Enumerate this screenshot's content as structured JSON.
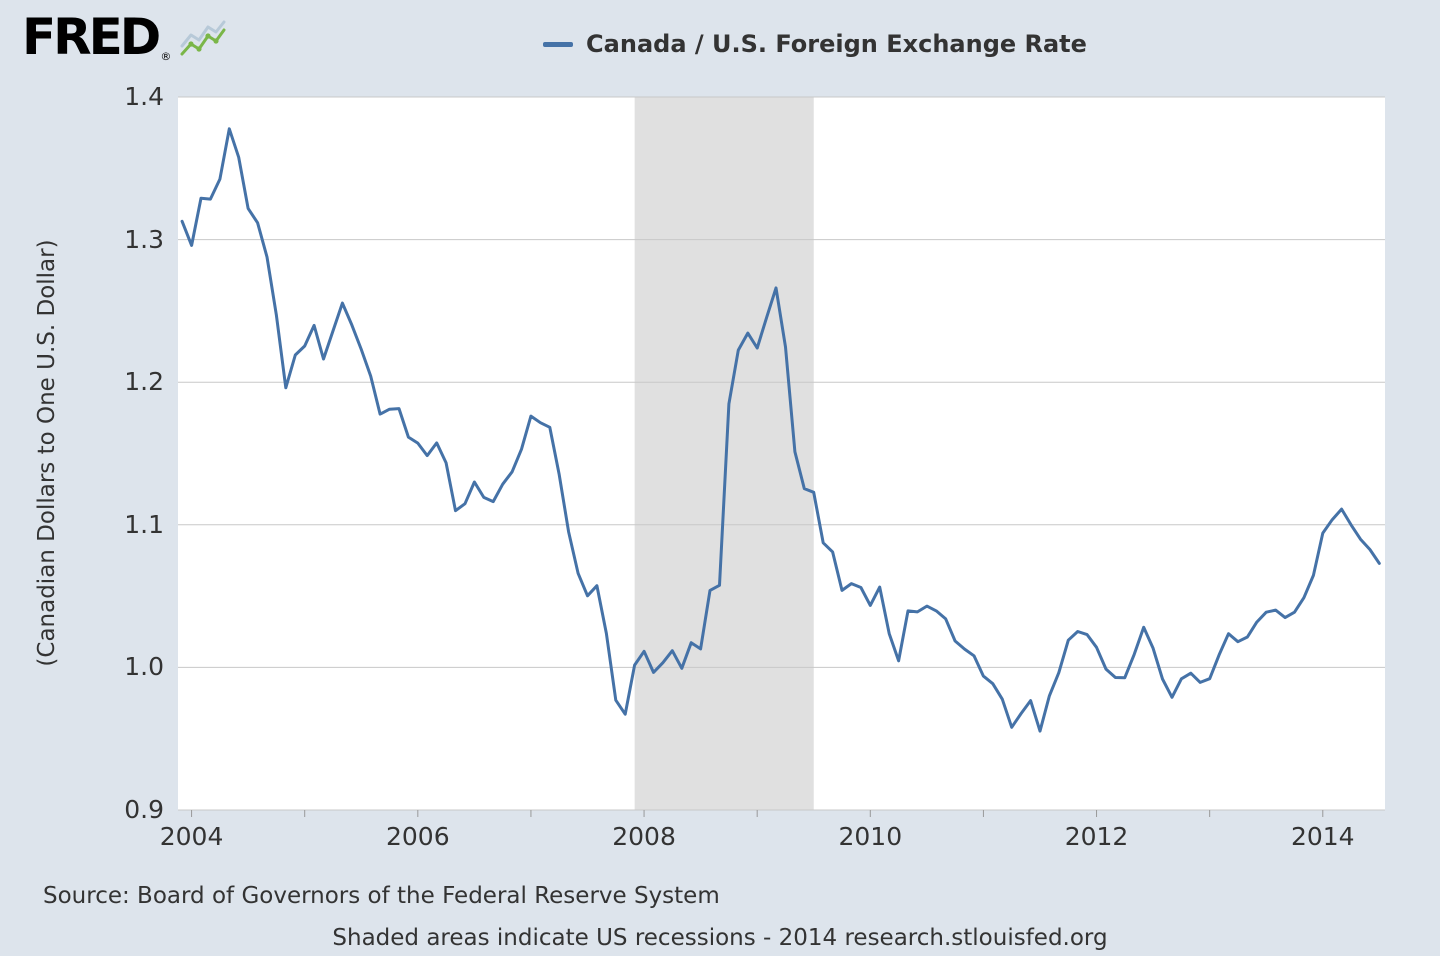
{
  "header": {
    "logo_text": "FRED",
    "logo_registered": "®"
  },
  "legend": {
    "series_label": "Canada / U.S. Foreign Exchange Rate",
    "series_color": "#4572a7"
  },
  "footer": {
    "source": "Source: Board of Governors of the Federal Reserve System",
    "note": "Shaded areas indicate US recessions - 2014 research.stlouisfed.org"
  },
  "colors": {
    "background": "#dde4ec",
    "plot_background": "#ffffff",
    "gridline": "#c8c8c8",
    "tick": "#999999",
    "line": "#4572a7",
    "recession_band": "#e0e0e0"
  },
  "chart_data": {
    "type": "line",
    "title": "Canada / U.S. Foreign Exchange Rate",
    "xlabel": "",
    "ylabel": "(Canadian Dollars to One U.S. Dollar)",
    "frequency": "monthly",
    "x_start": {
      "year": 2003,
      "month": 12
    },
    "x_end": {
      "year": 2014,
      "month": 7
    },
    "values": [
      1.3128,
      1.2959,
      1.329,
      1.3284,
      1.3424,
      1.3777,
      1.3577,
      1.3219,
      1.3118,
      1.2878,
      1.2469,
      1.1961,
      1.2191,
      1.2254,
      1.2398,
      1.2163,
      1.236,
      1.2555,
      1.2402,
      1.2229,
      1.2043,
      1.1776,
      1.1811,
      1.1815,
      1.1615,
      1.1573,
      1.1485,
      1.1574,
      1.1434,
      1.1099,
      1.1148,
      1.13,
      1.1192,
      1.1163,
      1.1285,
      1.1372,
      1.153,
      1.1762,
      1.1716,
      1.1684,
      1.1352,
      1.0951,
      1.066,
      1.0502,
      1.0573,
      1.0237,
      0.977,
      0.9672,
      1.0016,
      1.0113,
      0.9965,
      1.0033,
      1.0117,
      0.9994,
      1.0173,
      1.013,
      1.054,
      1.0576,
      1.1848,
      1.2225,
      1.2344,
      1.224,
      1.2453,
      1.2661,
      1.2247,
      1.1512,
      1.1254,
      1.1228,
      1.0874,
      1.081,
      1.054,
      1.0588,
      1.056,
      1.0435,
      1.0563,
      1.0237,
      1.0046,
      1.0396,
      1.0389,
      1.043,
      1.0396,
      1.034,
      1.0185,
      1.0128,
      1.0081,
      0.9939,
      0.9886,
      0.9777,
      0.958,
      0.9677,
      0.9767,
      0.9553,
      0.9801,
      0.9963,
      1.0191,
      1.0252,
      1.023,
      1.0141,
      0.9988,
      0.9929,
      0.9928,
      1.0091,
      1.0281,
      1.0134,
      0.9919,
      0.979,
      0.992,
      0.9959,
      0.9895,
      0.9921,
      1.0088,
      1.0236,
      1.018,
      1.0213,
      1.0318,
      1.0387,
      1.0402,
      1.0349,
      1.0387,
      1.0489,
      1.0645,
      1.0942,
      1.1036,
      1.111,
      1.0999,
      1.0899,
      1.0827,
      1.0729
    ],
    "ylim": [
      0.9,
      1.4
    ],
    "xlim": [
      2003.88,
      2014.55
    ],
    "y_ticks": [
      0.9,
      1.0,
      1.1,
      1.2,
      1.3,
      1.4
    ],
    "x_ticks": [
      2004,
      2006,
      2008,
      2010,
      2012,
      2014
    ],
    "x_minor_ticks": [
      2004,
      2005,
      2006,
      2007,
      2008,
      2009,
      2010,
      2011,
      2012,
      2013,
      2014
    ],
    "recessions": [
      {
        "start": 2007.917,
        "end": 2009.5
      }
    ],
    "grid": true,
    "legend_position": "top"
  }
}
